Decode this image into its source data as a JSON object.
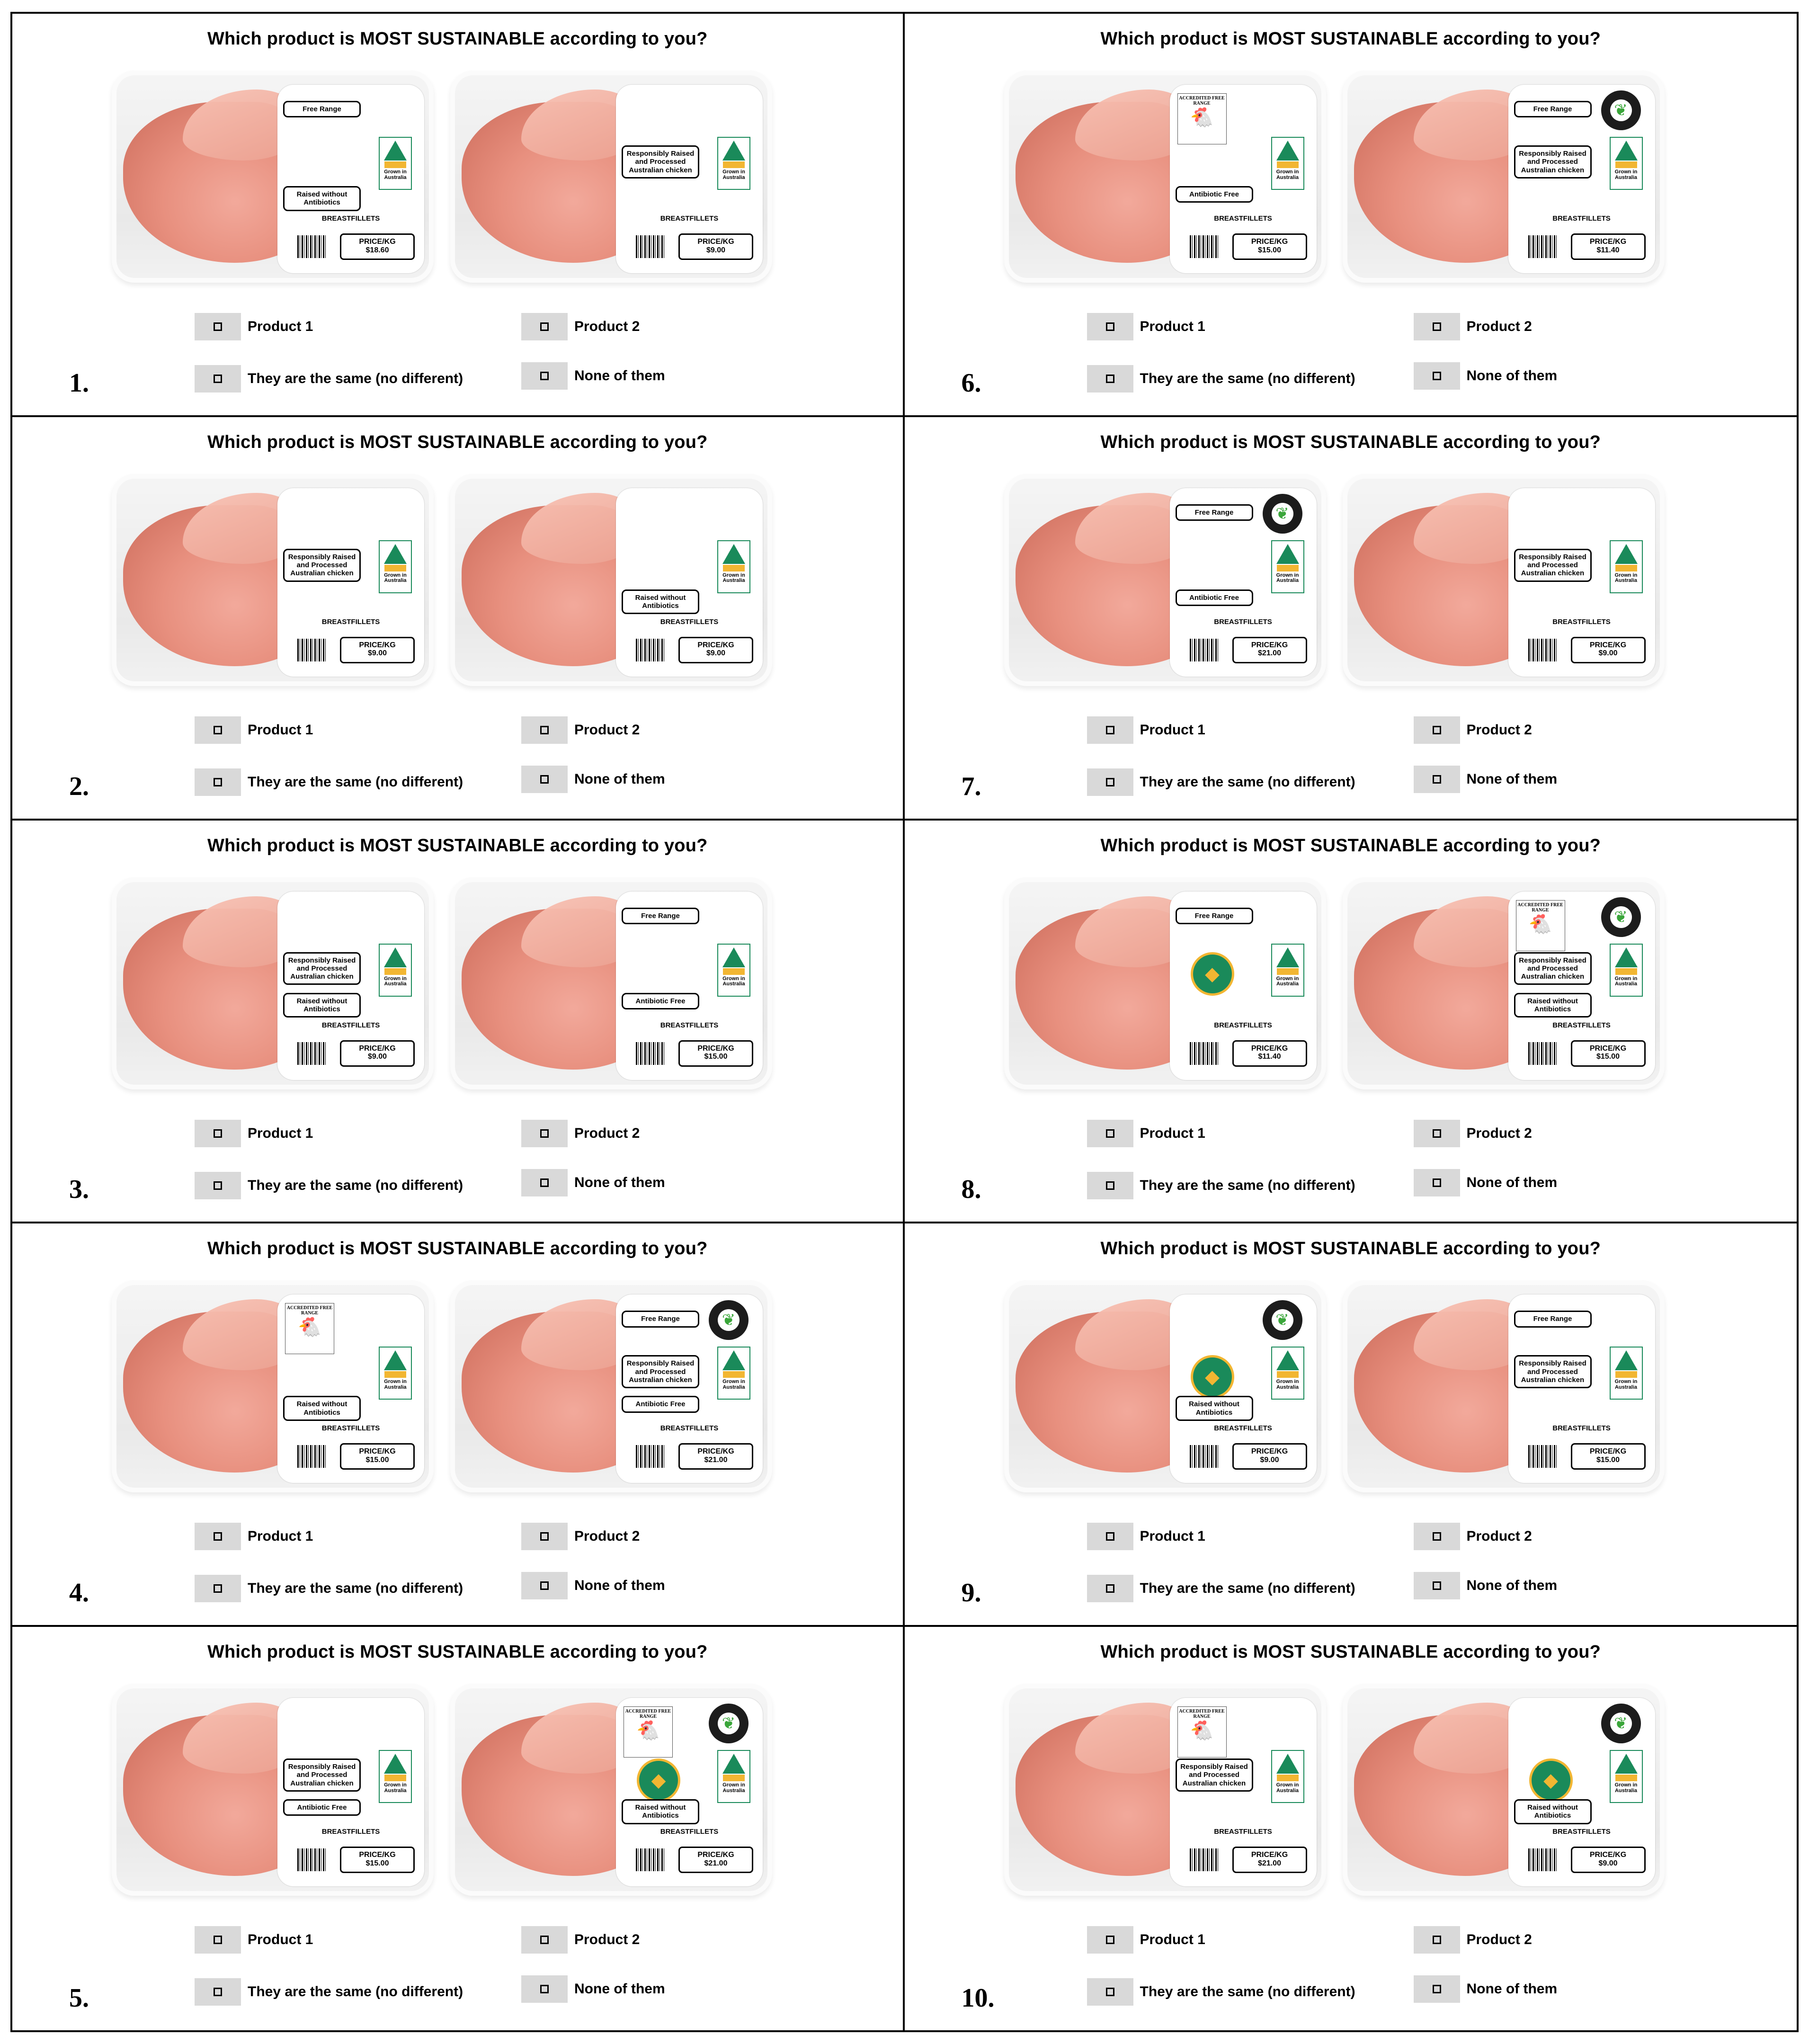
{
  "question": "Which product is MOST SUSTAINABLE according to you?",
  "options": {
    "product1": "Product 1",
    "product2": "Product 2",
    "same": "They are the same (no different)",
    "none": "None of them"
  },
  "common": {
    "type": "BREASTFILLETS",
    "price_label": "PRICE/KG",
    "grown_in": "Grown in Australia",
    "accredited_free_range": "ACCREDITED FREE RANGE"
  },
  "colors": {
    "label_green": "#1a8a5a",
    "label_gold": "#f2b632",
    "option_box": "#d9d9d9",
    "meat": "#e8907f"
  },
  "cells": [
    {
      "num": "1.",
      "products": [
        {
          "claims": [
            {
              "text": "Free Range",
              "pos": "top"
            },
            {
              "text": "Raised without Antibiotics",
              "pos": "low"
            }
          ],
          "logos": [],
          "price": "$18.60"
        },
        {
          "claims": [
            {
              "text": "Responsibly Raised and Processed Australian chicken",
              "pos": "mid"
            }
          ],
          "logos": [],
          "price": "$9.00"
        }
      ]
    },
    {
      "num": "6.",
      "products": [
        {
          "claims": [
            {
              "text": "Antibiotic Free",
              "pos": "low"
            }
          ],
          "logos": [
            "accredited"
          ],
          "price": "$15.00"
        },
        {
          "claims": [
            {
              "text": "Free Range",
              "pos": "top"
            },
            {
              "text": "Responsibly Raised and Processed Australian chicken",
              "pos": "mid"
            }
          ],
          "logos": [
            "seal"
          ],
          "price": "$11.40"
        }
      ]
    },
    {
      "num": "2.",
      "products": [
        {
          "claims": [
            {
              "text": "Responsibly Raised and Processed Australian chicken",
              "pos": "mid"
            }
          ],
          "logos": [],
          "price": "$9.00"
        },
        {
          "claims": [
            {
              "text": "Raised without Antibiotics",
              "pos": "low"
            }
          ],
          "logos": [],
          "price": "$9.00"
        }
      ]
    },
    {
      "num": "7.",
      "products": [
        {
          "claims": [
            {
              "text": "Free Range",
              "pos": "top"
            },
            {
              "text": "Antibiotic Free",
              "pos": "low"
            }
          ],
          "logos": [
            "seal"
          ],
          "price": "$21.00"
        },
        {
          "claims": [
            {
              "text": "Responsibly Raised and Processed Australian chicken",
              "pos": "mid"
            }
          ],
          "logos": [],
          "price": "$9.00"
        }
      ]
    },
    {
      "num": "3.",
      "products": [
        {
          "claims": [
            {
              "text": "Responsibly Raised and Processed Australian chicken",
              "pos": "mid"
            },
            {
              "text": "Raised without Antibiotics",
              "pos": "low"
            }
          ],
          "logos": [],
          "price": "$9.00"
        },
        {
          "claims": [
            {
              "text": "Free Range",
              "pos": "top"
            },
            {
              "text": "Antibiotic Free",
              "pos": "low"
            }
          ],
          "logos": [],
          "price": "$15.00"
        }
      ]
    },
    {
      "num": "8.",
      "products": [
        {
          "claims": [
            {
              "text": "Free Range",
              "pos": "top"
            }
          ],
          "logos": [
            "organic"
          ],
          "price": "$11.40"
        },
        {
          "claims": [
            {
              "text": "Responsibly Raised and Processed Australian chicken",
              "pos": "mid"
            },
            {
              "text": "Raised without Antibiotics",
              "pos": "low"
            }
          ],
          "logos": [
            "accredited",
            "seal"
          ],
          "price": "$15.00"
        }
      ]
    },
    {
      "num": "4.",
      "products": [
        {
          "claims": [
            {
              "text": "Raised without Antibiotics",
              "pos": "low"
            }
          ],
          "logos": [
            "accredited"
          ],
          "price": "$15.00"
        },
        {
          "claims": [
            {
              "text": "Free Range",
              "pos": "top"
            },
            {
              "text": "Responsibly Raised and Processed Australian chicken",
              "pos": "mid"
            },
            {
              "text": "Antibiotic Free",
              "pos": "low"
            }
          ],
          "logos": [
            "seal"
          ],
          "price": "$21.00"
        }
      ]
    },
    {
      "num": "9.",
      "products": [
        {
          "claims": [
            {
              "text": "Raised without Antibiotics",
              "pos": "low"
            }
          ],
          "logos": [
            "seal",
            "organic"
          ],
          "price": "$9.00"
        },
        {
          "claims": [
            {
              "text": "Free Range",
              "pos": "top"
            },
            {
              "text": "Responsibly Raised and Processed Australian chicken",
              "pos": "mid"
            }
          ],
          "logos": [],
          "price": "$15.00"
        }
      ]
    },
    {
      "num": "5.",
      "products": [
        {
          "claims": [
            {
              "text": "Responsibly Raised and Processed Australian chicken",
              "pos": "mid"
            },
            {
              "text": "Antibiotic Free",
              "pos": "low"
            }
          ],
          "logos": [],
          "price": "$15.00"
        },
        {
          "claims": [
            {
              "text": "Raised without Antibiotics",
              "pos": "low"
            }
          ],
          "logos": [
            "accredited",
            "seal",
            "organic"
          ],
          "price": "$21.00"
        }
      ]
    },
    {
      "num": "10.",
      "products": [
        {
          "claims": [
            {
              "text": "Responsibly Raised and Processed Australian chicken",
              "pos": "mid"
            }
          ],
          "logos": [
            "accredited"
          ],
          "price": "$21.00"
        },
        {
          "claims": [
            {
              "text": "Raised without Antibiotics",
              "pos": "low"
            }
          ],
          "logos": [
            "seal",
            "organic"
          ],
          "price": "$9.00"
        }
      ]
    }
  ]
}
